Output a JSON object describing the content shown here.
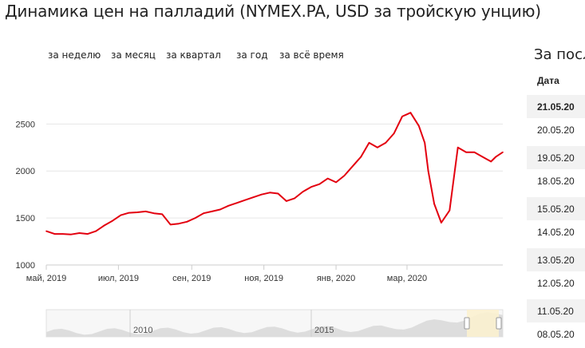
{
  "page_title": "Динамика цен на палладий (NYMEX.PA, USD за тройскую унцию)",
  "range_tabs": [
    "за неделю",
    "за месяц",
    "за квартал",
    "за год",
    "за всё время"
  ],
  "side": {
    "title": "За посл",
    "col_header": "Дата",
    "dates": [
      "21.05.20",
      "20.05.20",
      "19.05.20",
      "18.05.20",
      "15.05.20",
      "14.05.20",
      "13.05.20",
      "12.05.20",
      "11.05.20",
      "08.05.20"
    ]
  },
  "colors": {
    "line": "#e3000f",
    "grid": "#e6e6e6",
    "navigator_area": "#dddddd",
    "navigator_selection": "#fbf1cf"
  },
  "chart_data": {
    "type": "line",
    "title": "",
    "xlabel": "",
    "ylabel": "",
    "ylim": [
      1000,
      2800
    ],
    "y_ticks": [
      1000,
      1500,
      2000,
      2500
    ],
    "x_ticks": [
      {
        "label": "май, 2019",
        "date": "2019-05-01"
      },
      {
        "label": "июл, 2019",
        "date": "2019-07-01"
      },
      {
        "label": "сен, 2019",
        "date": "2019-09-01"
      },
      {
        "label": "ноя, 2019",
        "date": "2019-11-01"
      },
      {
        "label": "янв, 2020",
        "date": "2020-01-01"
      },
      {
        "label": "мар, 2020",
        "date": "2020-03-01"
      }
    ],
    "xlim": [
      "2019-05-01",
      "2020-05-21"
    ],
    "grid": true,
    "series": [
      {
        "x": [
          "2019-05-01",
          "2019-05-08",
          "2019-05-15",
          "2019-05-22",
          "2019-05-29",
          "2019-06-05",
          "2019-06-12",
          "2019-06-19",
          "2019-06-26",
          "2019-07-03",
          "2019-07-10",
          "2019-07-17",
          "2019-07-24",
          "2019-07-31",
          "2019-08-07",
          "2019-08-14",
          "2019-08-21",
          "2019-08-28",
          "2019-09-04",
          "2019-09-11",
          "2019-09-18",
          "2019-09-25",
          "2019-10-02",
          "2019-10-09",
          "2019-10-16",
          "2019-10-23",
          "2019-10-30",
          "2019-11-06",
          "2019-11-13",
          "2019-11-20",
          "2019-11-27",
          "2019-12-04",
          "2019-12-11",
          "2019-12-18",
          "2019-12-25",
          "2020-01-01",
          "2020-01-08",
          "2020-01-15",
          "2020-01-22",
          "2020-01-29",
          "2020-02-05",
          "2020-02-12",
          "2020-02-19",
          "2020-02-26",
          "2020-03-04",
          "2020-03-11",
          "2020-03-16",
          "2020-03-19",
          "2020-03-24",
          "2020-03-30",
          "2020-04-06",
          "2020-04-13",
          "2020-04-20",
          "2020-04-27",
          "2020-05-04",
          "2020-05-11",
          "2020-05-15",
          "2020-05-21"
        ],
        "y": [
          1360,
          1330,
          1330,
          1325,
          1340,
          1330,
          1360,
          1420,
          1470,
          1530,
          1555,
          1560,
          1570,
          1550,
          1540,
          1430,
          1440,
          1460,
          1500,
          1550,
          1570,
          1590,
          1630,
          1660,
          1690,
          1720,
          1750,
          1770,
          1760,
          1680,
          1710,
          1780,
          1830,
          1860,
          1920,
          1880,
          1950,
          2050,
          2150,
          2300,
          2250,
          2300,
          2400,
          2580,
          2620,
          2480,
          2300,
          2000,
          1650,
          1450,
          1580,
          2250,
          2200,
          2200,
          2150,
          2100,
          2150,
          2200
        ]
      }
    ],
    "navigator": {
      "x_labels": [
        "2010",
        "2015"
      ]
    }
  }
}
